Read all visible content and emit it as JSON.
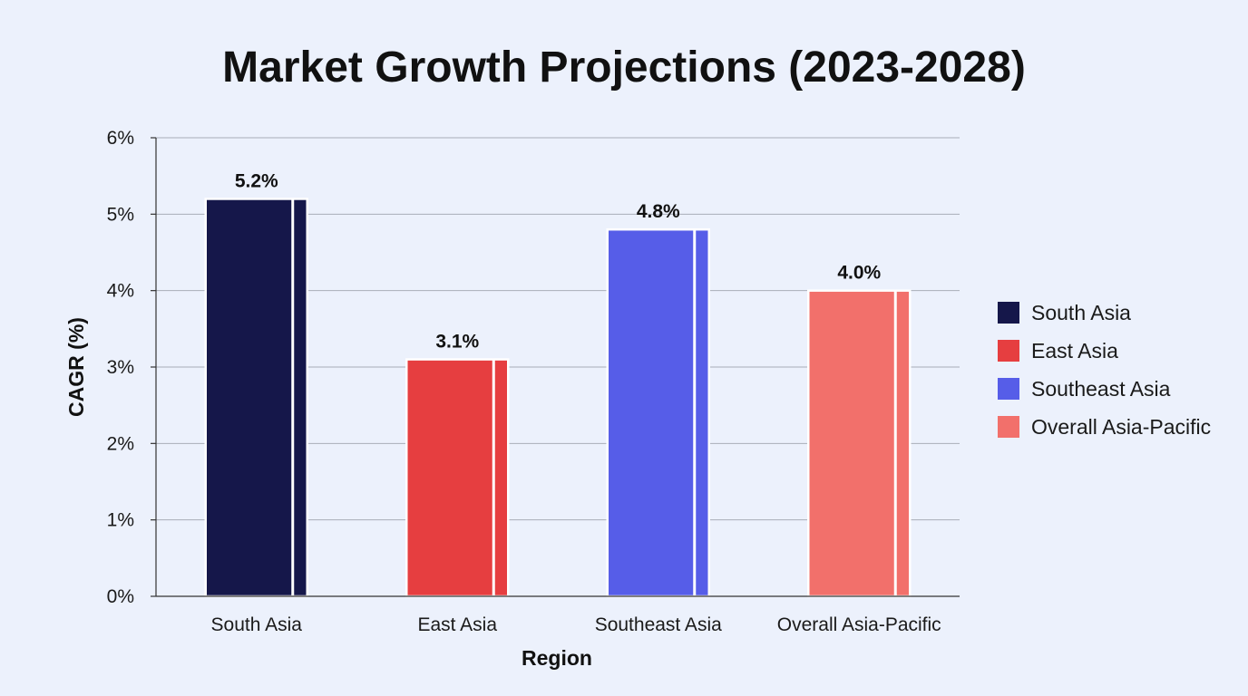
{
  "chart_data": {
    "type": "bar",
    "title": "Market Growth Projections (2023-2028)",
    "xlabel": "Region",
    "ylabel": "CAGR (%)",
    "categories": [
      "South Asia",
      "East Asia",
      "Southeast Asia",
      "Overall Asia-Pacific"
    ],
    "values": [
      5.2,
      3.1,
      4.8,
      4.0
    ],
    "data_labels": [
      "5.2%",
      "3.1%",
      "4.8%",
      "4.0%"
    ],
    "colors": [
      "#15174a",
      "#e63e40",
      "#565de8",
      "#f2706b"
    ],
    "ylim": [
      0,
      6
    ],
    "yticks": [
      0,
      1,
      2,
      3,
      4,
      5,
      6
    ],
    "ytick_labels": [
      "0%",
      "1%",
      "2%",
      "3%",
      "4%",
      "5%",
      "6%"
    ],
    "grid": true,
    "legend": {
      "position": "right",
      "entries": [
        "South Asia",
        "East Asia",
        "Southeast Asia",
        "Overall Asia-Pacific"
      ]
    }
  }
}
